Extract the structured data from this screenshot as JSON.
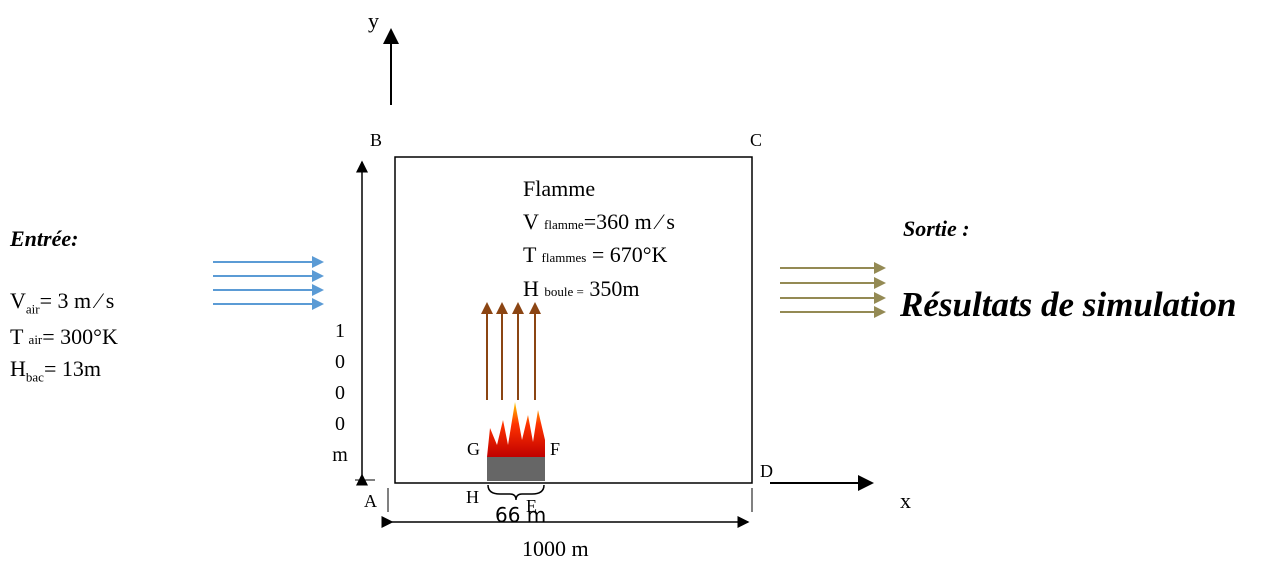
{
  "axes": {
    "y": "y",
    "x": "x"
  },
  "corners": {
    "B": "B",
    "C": "C",
    "A": "A",
    "D": "D",
    "G": "G",
    "F": "F",
    "H": "H",
    "E": "E"
  },
  "flame": {
    "title": "Flamme",
    "velocity": {
      "main": "V",
      "sub": "flamme",
      "rest": "=360 m ⁄ s"
    },
    "temperature": {
      "main": "T",
      "sub": "flammes",
      "rest": "= 670°K"
    },
    "height": {
      "main": "H",
      "sub": "boule =",
      "rest": "350m"
    }
  },
  "inlet": {
    "title": "Entrée:",
    "velocity": {
      "main": "V",
      "sub": "air",
      "rest": "= 3 m ⁄ s"
    },
    "temperature": {
      "main": "T",
      "sub": "air",
      "rest": "= 300°K"
    },
    "height": {
      "main": "H",
      "sub": "bac",
      "rest": "= 13m"
    }
  },
  "outlet": {
    "title": "Sortie :",
    "label": "Résultats de simulation"
  },
  "dimensions": {
    "height": "1000m",
    "width": "1000 m",
    "pool": "66 m"
  }
}
